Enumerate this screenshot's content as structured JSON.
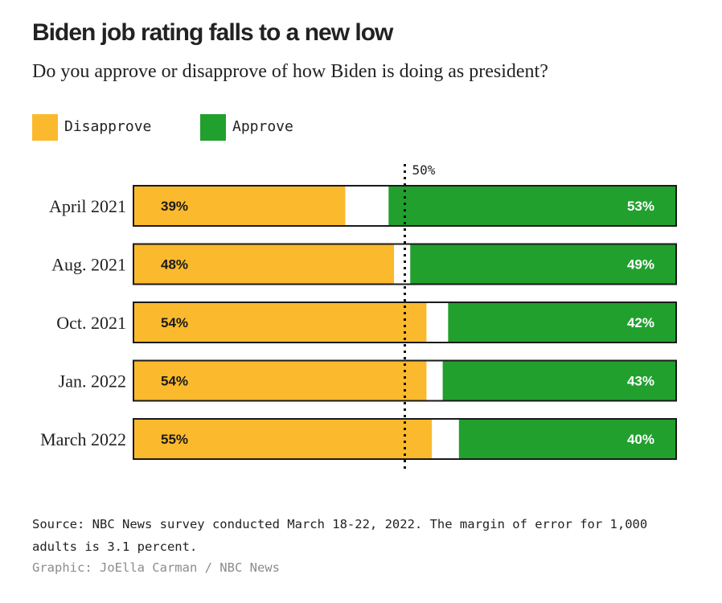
{
  "header": {
    "title": "Biden job rating falls to a new low",
    "subtitle": "Do you approve or disapprove of how Biden is doing as president?"
  },
  "legend": {
    "disapprove_label": "Disapprove",
    "approve_label": "Approve"
  },
  "colors": {
    "disapprove": "#FBBA2D",
    "approve": "#21A02E",
    "border": "#1a1a1a",
    "unsure": "#ffffff"
  },
  "chart_data": {
    "type": "bar",
    "orientation": "horizontal-stacked",
    "categories": [
      "April 2021",
      "Aug. 2021",
      "Oct. 2021",
      "Jan. 2022",
      "March 2022"
    ],
    "series": [
      {
        "name": "Disapprove",
        "values": [
          39,
          48,
          54,
          54,
          55
        ]
      },
      {
        "name": "Approve",
        "values": [
          53,
          49,
          42,
          43,
          40
        ]
      }
    ],
    "data_labels": {
      "disapprove": [
        "39%",
        "48%",
        "54%",
        "54%",
        "55%"
      ],
      "approve": [
        "53%",
        "49%",
        "42%",
        "43%",
        "40%"
      ]
    },
    "reference_line": {
      "value": 50,
      "label": "50%"
    },
    "xlim": [
      0,
      100
    ],
    "legend_position": "top-left"
  },
  "footer": {
    "source": "Source: NBC News survey conducted March 18-22, 2022. The margin of error for 1,000 adults is 3.1 percent.",
    "credit": "Graphic: JoElla Carman / NBC News"
  }
}
